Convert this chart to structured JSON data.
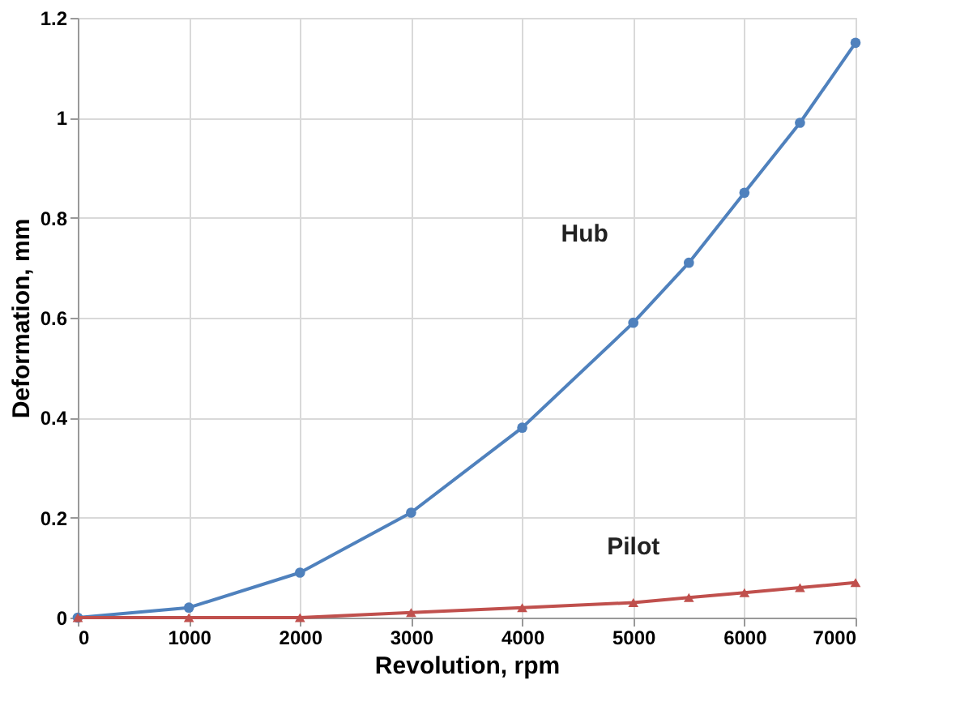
{
  "chart_data": {
    "type": "line",
    "xlabel": "Revolution, rpm",
    "ylabel": "Deformation, mm",
    "x": [
      0,
      1000,
      2000,
      3000,
      4000,
      5000,
      5500,
      6000,
      6500,
      7000
    ],
    "series": [
      {
        "name": "Hub",
        "color": "#4f81bd",
        "marker": "circle",
        "values": [
          0,
          0.02,
          0.09,
          0.21,
          0.38,
          0.59,
          0.71,
          0.85,
          0.99,
          1.15
        ]
      },
      {
        "name": "Pilot",
        "color": "#c0504d",
        "marker": "triangle",
        "values": [
          0,
          0,
          0,
          0.01,
          0.02,
          0.03,
          0.04,
          0.05,
          0.06,
          0.07
        ]
      }
    ],
    "xlim": [
      0,
      7000
    ],
    "xticks": [
      0,
      1000,
      2000,
      3000,
      4000,
      5000,
      6000,
      7000
    ],
    "ylim": [
      0,
      1.2
    ],
    "yticks": [
      0,
      0.2,
      0.4,
      0.6,
      0.8,
      1,
      1.2
    ],
    "grid": true,
    "line_style": "solid"
  }
}
